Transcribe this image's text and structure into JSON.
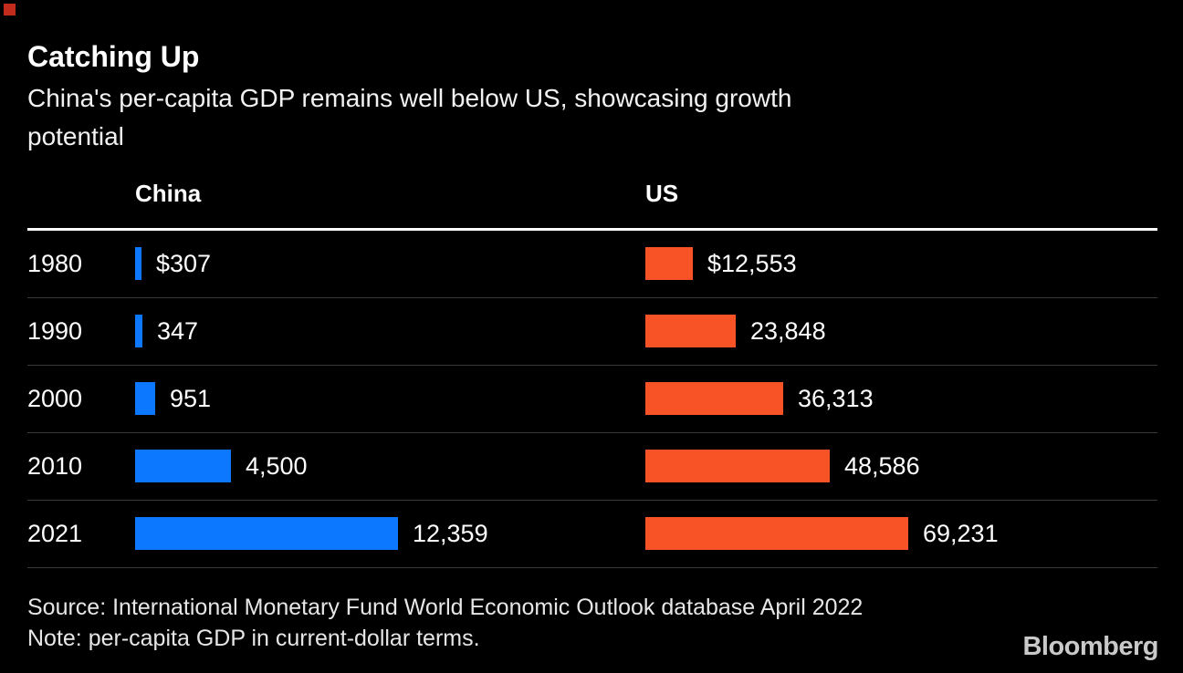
{
  "header": {
    "title": "Catching Up",
    "subtitle_lines": [
      "China's per-capita GDP remains well below US, showcasing growth",
      "potential"
    ]
  },
  "chart_data": {
    "type": "bar",
    "orientation": "horizontal",
    "categories": [
      "1980",
      "1990",
      "2000",
      "2010",
      "2021"
    ],
    "series": [
      {
        "name": "China",
        "color": "#0b78ff",
        "values": [
          307,
          347,
          951,
          4500,
          12359
        ],
        "labels": [
          "$307",
          "347",
          "951",
          "4,500",
          "12,359"
        ]
      },
      {
        "name": "US",
        "color": "#f85327",
        "values": [
          12553,
          23848,
          36313,
          48586,
          69231
        ],
        "labels": [
          "$12,553",
          "23,848",
          "36,313",
          "48,586",
          "69,231"
        ]
      }
    ],
    "title": "Catching Up",
    "subtitle": "China's per-capita GDP remains well below US, showcasing growth potential",
    "value_unit": "US dollars, per-capita GDP, current-dollar terms",
    "layout_hints": {
      "grid": "row separators only",
      "legend_position": "column headers above bars",
      "each_column_scaled_to_its_own_max": true
    }
  },
  "footer": {
    "source": "Source: International Monetary Fund World Economic Outlook database April 2022",
    "note": "Note: per-capita GDP in current-dollar terms.",
    "logo_text": "Bloomberg"
  },
  "colors": {
    "background": "#000000",
    "china_bar": "#0b78ff",
    "us_bar": "#f85327",
    "title_text": "#ffffff",
    "footer_text": "#e6e6e6",
    "row_separator": "#3a3a3a",
    "header_rule": "#ffffff",
    "red_box": "#c32b1c",
    "logo_text": "#c9c9c9"
  }
}
